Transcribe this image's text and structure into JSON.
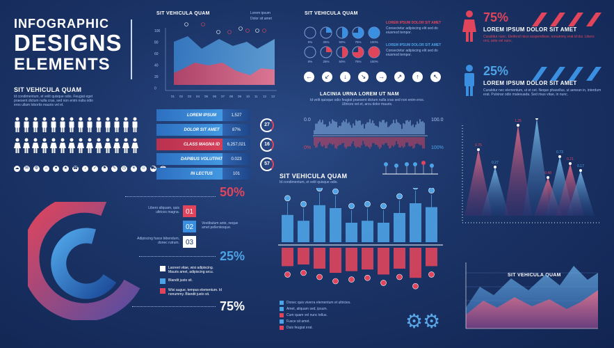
{
  "title": {
    "line1": "INFOGRAPHIC",
    "line2": "DESIGNS",
    "line3": "ELEMENTS"
  },
  "people_block": {
    "heading": "SIT VEHICULA QUAM",
    "text": "Id condimentum, et velit quisque odio. Feugiat eget praesent dictum nulla cras, sed non enim nulla odio eros ullam lobortis mauris vel et."
  },
  "area_chart_top": {
    "heading": "SIT VEHICULA QUAM",
    "legend": [
      "Lorem ipsum",
      "Dolor sit amet"
    ],
    "y_ticks": [
      "100",
      "80",
      "60",
      "40",
      "20",
      "0"
    ],
    "x_ticks": [
      "01",
      "02",
      "03",
      "04",
      "05",
      "06",
      "07",
      "08",
      "09",
      "10",
      "11",
      "12",
      "13"
    ]
  },
  "bar_table": {
    "rows": [
      {
        "label": "LOREM IPSUM",
        "value": "1,527",
        "color": "#3a8fe0"
      },
      {
        "label": "DOLOR SIT AMET",
        "value": "87%",
        "color": "#3a8fe0"
      },
      {
        "label": "CLASS MAGNA ID",
        "value": "6,257,021",
        "color": "#e0455c"
      },
      {
        "label": "DAPIBUS VOLUTPAT",
        "value": "0.023",
        "color": "#3a8fe0"
      },
      {
        "label": "IN LECTUS",
        "value": "101",
        "color": "#3a8fe0"
      }
    ],
    "rings": [
      "27",
      "16",
      "57"
    ]
  },
  "donut_block": {
    "items": [
      {
        "num": "01",
        "text": "Libero aliquam, quis ultrices magna."
      },
      {
        "num": "02",
        "text": "Vestibulum ante, neque amet pellentesque."
      },
      {
        "num": "03",
        "text": "Adipiscing fusce bibendum, donec rutrum."
      }
    ],
    "pct": [
      "50%",
      "25%",
      "75%"
    ],
    "legend": [
      {
        "text": "Laoreet vitae, wisi adipiscing. Mauris amet, adipiscing arcu.",
        "color": "#ffffff"
      },
      {
        "text": "Blandit justo sit.",
        "color": "#4ea3e6"
      },
      {
        "text": "Wisi augue, tempus elementum. Id nonummy. Blandit justo sit.",
        "color": "#e0455c"
      }
    ]
  },
  "pie_block": {
    "heading": "SIT VEHICULA QUAM",
    "top_row": [
      "0%",
      "25%",
      "50%",
      "75%",
      "100%"
    ],
    "bottom_row": [
      "0%",
      "25%",
      "50%",
      "75%",
      "100%"
    ],
    "legend_red": "LOREM IPSUM DOLOR SIT AMET",
    "legend_blue": "LOREM IPSUM DOLOR SIT AMET",
    "legend_text": "Consectetur adipiscing elit sed do eiusmod tempor."
  },
  "arrows": [
    "←",
    "↙",
    "↓",
    "↘",
    "→",
    "↗",
    "↑",
    "↖"
  ],
  "wave_block": {
    "heading": "LACINIA URNA LOREM UT NAM",
    "text": "Id velit quisque odio feugiat praesent dictum nulla cras sed non enim eros. Ultrices vel et, arcu dolor mauris.",
    "left_top": "0.0",
    "left_bottom": "0%",
    "right_top": "100.0",
    "right_bottom": "100%"
  },
  "gender_block": {
    "female_pct": "75%",
    "female_title": "LOREM IPSUM DOLOR SIT AMET",
    "female_text": "Curabitur nunc. Eleifend risus suspendisse, nonummy erat id dui. Libero orci, ante vel nunc.",
    "male_pct": "25%",
    "male_title": "LOREM IPSUM DOLOR SIT AMET",
    "male_text": "Curabitur nec elementum, ut et cet. Neque phasellus, ut aenean in, interdum erat. Pulvinar odio malesuada. Sed risus vitae, in nunc."
  },
  "peaks_block": {
    "labels": [
      "0.75",
      "0.27",
      "1.25",
      "1.12",
      "0.48",
      "0.73",
      "0.21",
      "0.17"
    ]
  },
  "pin_block": {
    "heading": "SIT VEHICULA QUAM",
    "text": "Id condimentum, et velit quisque odio.",
    "legend": [
      "Donec quis viverra elementum et ultricies.",
      "Amet, aliquam sed, ipsum.",
      "Cum quam vel nunc tellus.",
      "Fusce sit amet.",
      "Duis feugiat erat."
    ]
  },
  "area_chart_bottom": {
    "heading": "SIT VEHICULA QUAM"
  }
}
